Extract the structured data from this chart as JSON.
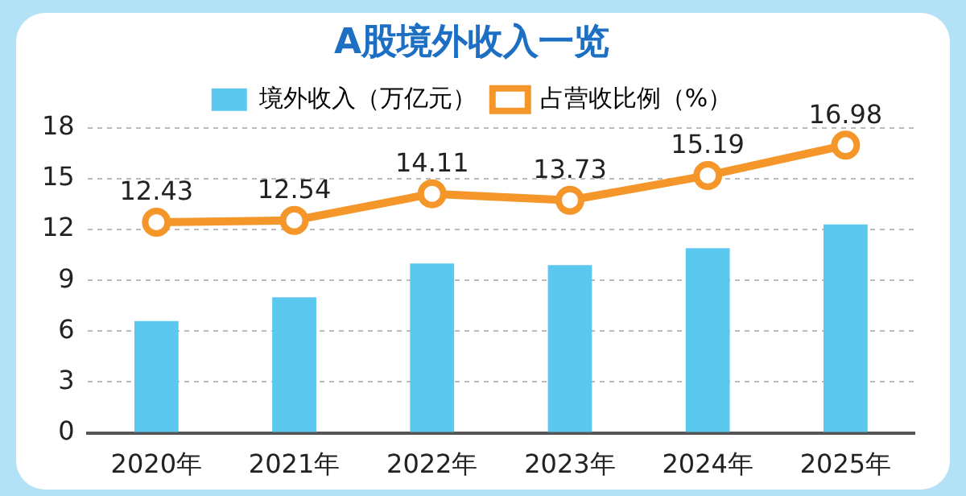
{
  "chart_data": {
    "type": "bar",
    "title": "A股境外收入一览",
    "categories": [
      "2020年",
      "2021年",
      "2022年",
      "2023年",
      "2024年",
      "2025年"
    ],
    "series": [
      {
        "name": "境外收入（万亿元）",
        "color": "#5bc8f0",
        "values": [
          6.6,
          8.0,
          10.0,
          9.9,
          10.9,
          12.3
        ]
      },
      {
        "name": "占营收比例（%）",
        "type": "line",
        "color": "#f5962a",
        "marker": "circle",
        "values": [
          12.43,
          12.54,
          14.11,
          13.73,
          15.19,
          16.98
        ],
        "value_labels": [
          "12.43",
          "12.54",
          "14.11",
          "13.73",
          "15.19",
          "16.98"
        ]
      }
    ],
    "ylim": [
      0,
      18
    ],
    "yticks": [
      0,
      3,
      6,
      9,
      12,
      15,
      18
    ],
    "grid": "y",
    "legend": "top"
  }
}
